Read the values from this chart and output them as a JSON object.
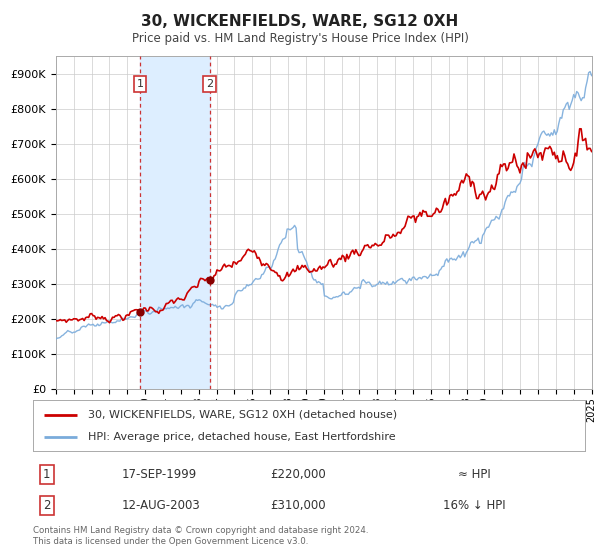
{
  "title": "30, WICKENFIELDS, WARE, SG12 0XH",
  "subtitle": "Price paid vs. HM Land Registry's House Price Index (HPI)",
  "legend_line1": "30, WICKENFIELDS, WARE, SG12 0XH (detached house)",
  "legend_line2": "HPI: Average price, detached house, East Hertfordshire",
  "transaction1_label": "1",
  "transaction1_date": "17-SEP-1999",
  "transaction1_price": "£220,000",
  "transaction1_hpi": "≈ HPI",
  "transaction2_label": "2",
  "transaction2_date": "12-AUG-2003",
  "transaction2_price": "£310,000",
  "transaction2_hpi": "16% ↓ HPI",
  "footnote": "Contains HM Land Registry data © Crown copyright and database right 2024.\nThis data is licensed under the Open Government Licence v3.0.",
  "price_color": "#cc0000",
  "hpi_color": "#7aabdb",
  "shade_color": "#ddeeff",
  "marker_color": "#880000",
  "vline_color": "#cc3333",
  "grid_color": "#cccccc",
  "bg_color": "#ffffff",
  "ylim": [
    0,
    950000
  ],
  "yticks": [
    0,
    100000,
    200000,
    300000,
    400000,
    500000,
    600000,
    700000,
    800000,
    900000
  ],
  "ytick_labels": [
    "£0",
    "£100K",
    "£200K",
    "£300K",
    "£400K",
    "£500K",
    "£600K",
    "£700K",
    "£800K",
    "£900K"
  ],
  "transaction1_year": 1999.72,
  "transaction2_year": 2003.62,
  "transaction1_value": 220000,
  "transaction2_value": 310000,
  "xlim_start": 1995,
  "xlim_end": 2025
}
